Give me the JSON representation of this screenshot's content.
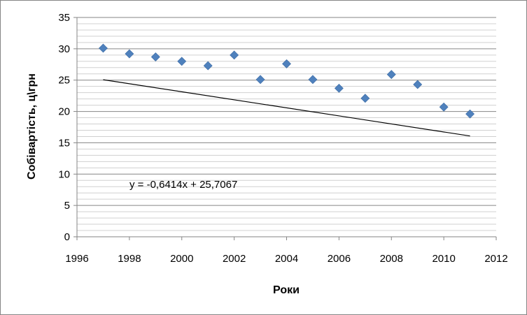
{
  "chart_data": {
    "type": "scatter",
    "title": "",
    "xlabel": "Роки",
    "ylabel": "Собівартість, ц\\грн",
    "xlim": [
      1996,
      2012
    ],
    "ylim": [
      0,
      35
    ],
    "x_ticks": [
      "1996",
      "1998",
      "2000",
      "2002",
      "2004",
      "2006",
      "2008",
      "2010",
      "2012"
    ],
    "y_ticks": [
      "0",
      "5",
      "10",
      "15",
      "20",
      "25",
      "30",
      "35"
    ],
    "grid": "horizontal-major-and-minor",
    "legend": "none",
    "series": [
      {
        "x": [
          1997,
          1998,
          1999,
          2000,
          2001,
          2002,
          2003,
          2004,
          2005,
          2006,
          2007,
          2008,
          2009,
          2010,
          2011
        ],
        "y": [
          30.1,
          29.2,
          28.7,
          28.0,
          27.3,
          29.0,
          25.1,
          27.6,
          25.1,
          23.7,
          22.1,
          25.9,
          24.3,
          20.7,
          19.6
        ],
        "color": "#4F81BD",
        "marker": "diamond"
      }
    ],
    "trendline": {
      "type": "linear",
      "color": "#000000",
      "equation": "y = -0,6414x + 25,7067",
      "slope": -0.6414,
      "intercept": 25.7067,
      "x_start": 1997,
      "x_end": 2011
    }
  }
}
